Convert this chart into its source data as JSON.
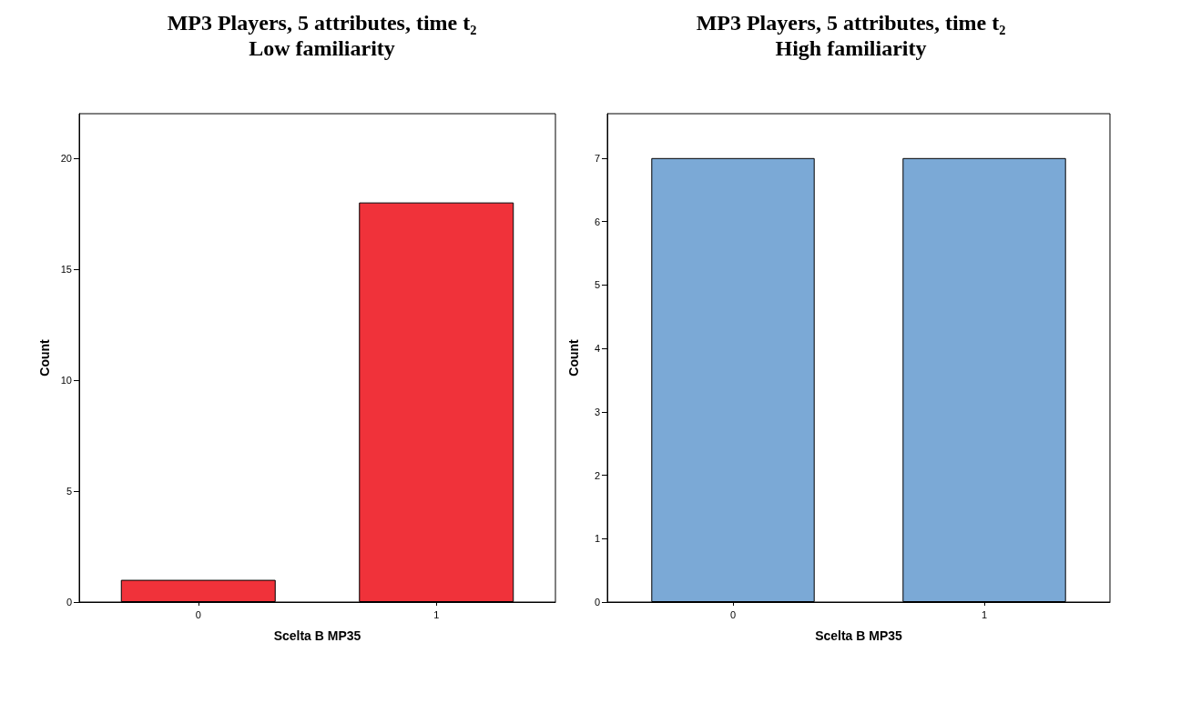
{
  "chart_data": [
    {
      "type": "bar",
      "title": "MP3 Players, 5 attributes, time t₂",
      "subtitle": "Low familiarity",
      "xlabel": "Scelta B MP35",
      "ylabel": "Count",
      "categories": [
        "0",
        "1"
      ],
      "values": [
        1,
        18
      ],
      "color": "#f0323a",
      "ylim": [
        0,
        22
      ],
      "yticks": [
        0,
        5,
        10,
        15,
        20
      ],
      "grid": false
    },
    {
      "type": "bar",
      "title": "MP3 Players, 5 attributes, time t₂",
      "subtitle": "High familiarity",
      "xlabel": "Scelta B MP35",
      "ylabel": "Count",
      "categories": [
        "0",
        "1"
      ],
      "values": [
        7,
        7
      ],
      "color": "#7ba9d6",
      "ylim": [
        0,
        7.7
      ],
      "yticks": [
        0,
        1,
        2,
        3,
        4,
        5,
        6,
        7
      ],
      "grid": false
    }
  ]
}
